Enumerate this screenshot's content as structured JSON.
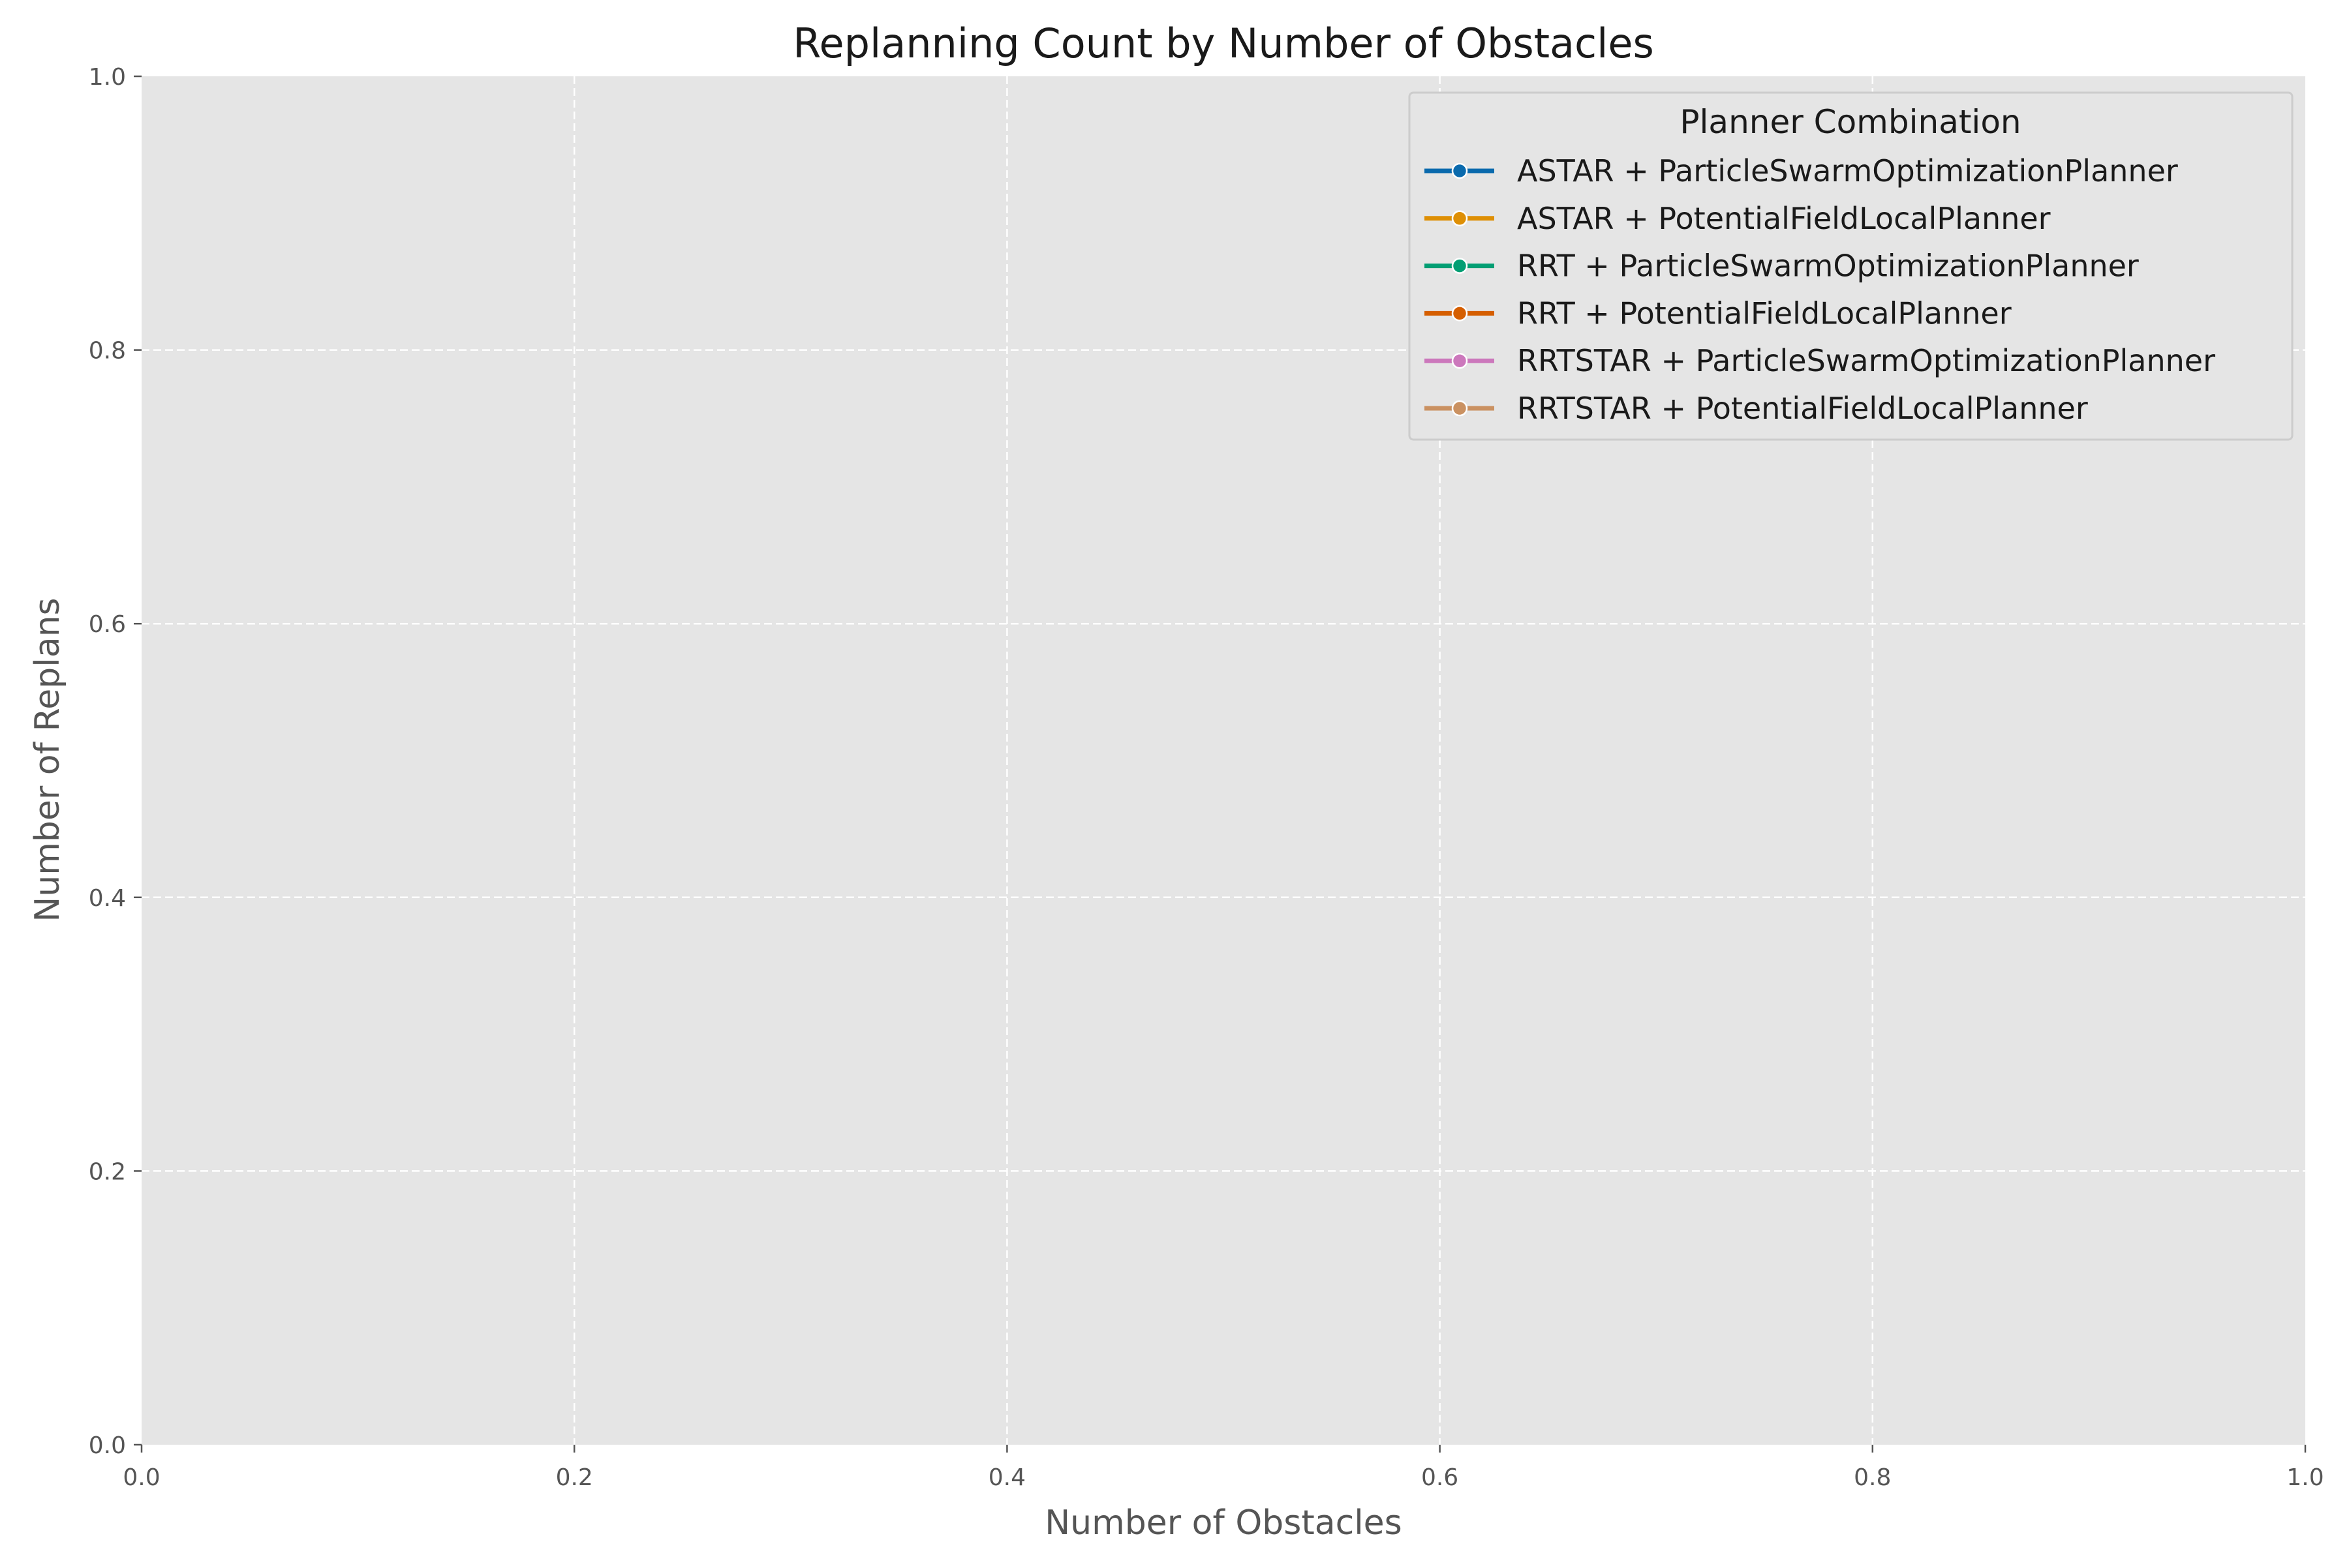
{
  "chart_data": {
    "type": "line",
    "title": "Replanning Count by Number of Obstacles",
    "xlabel": "Number of Obstacles",
    "ylabel": "Number of Replans",
    "xlim": [
      0.0,
      1.0
    ],
    "ylim": [
      0.0,
      1.0
    ],
    "x_ticks": [
      0.0,
      0.2,
      0.4,
      0.6,
      0.8,
      1.0
    ],
    "y_ticks": [
      0.0,
      0.2,
      0.4,
      0.6,
      0.8,
      1.0
    ],
    "x_tick_labels": [
      "0.0",
      "0.2",
      "0.4",
      "0.6",
      "0.8",
      "1.0"
    ],
    "y_tick_labels": [
      "0.0",
      "0.2",
      "0.4",
      "0.6",
      "0.8",
      "1.0"
    ],
    "grid": true,
    "background_color": "#E5E5E5",
    "legend": {
      "title": "Planner Combination",
      "placement": "top-right"
    },
    "series": [
      {
        "name": "ASTAR + ParticleSwarmOptimizationPlanner",
        "color": "#0A6AAD",
        "x": [],
        "y": []
      },
      {
        "name": "ASTAR + PotentialFieldLocalPlanner",
        "color": "#DE8F05",
        "x": [],
        "y": []
      },
      {
        "name": "RRT + ParticleSwarmOptimizationPlanner",
        "color": "#029E73",
        "x": [],
        "y": []
      },
      {
        "name": "RRT + PotentialFieldLocalPlanner",
        "color": "#D55E00",
        "x": [],
        "y": []
      },
      {
        "name": "RRTSTAR + ParticleSwarmOptimizationPlanner",
        "color": "#CC78BC",
        "x": [],
        "y": []
      },
      {
        "name": "RRTSTAR + PotentialFieldLocalPlanner",
        "color": "#CA9161",
        "x": [],
        "y": []
      }
    ]
  }
}
